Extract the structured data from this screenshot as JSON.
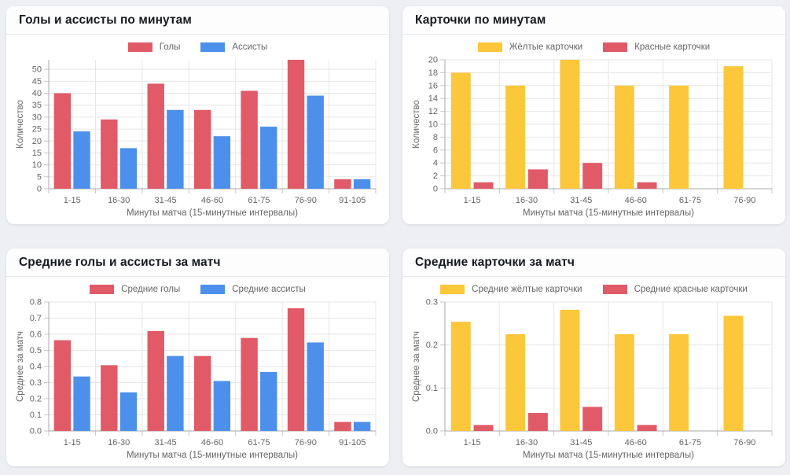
{
  "page": {
    "background_color": "#edeff3",
    "card_color": "#ffffff",
    "grid_color": "#e6e6e6",
    "axis_color": "#a8a8a8",
    "tick_text_color": "#666666"
  },
  "chart_data": [
    {
      "id": "goals-assists-by-minutes",
      "title": "Голы и ассисты по минутам",
      "type": "bar",
      "categories": [
        "1-15",
        "16-30",
        "31-45",
        "46-60",
        "61-75",
        "76-90",
        "91-105"
      ],
      "series": [
        {
          "name": "Голы",
          "color": "#e05a67",
          "values": [
            40,
            29,
            44,
            33,
            41,
            54,
            4
          ]
        },
        {
          "name": "Ассисты",
          "color": "#4d90eb",
          "values": [
            24,
            17,
            33,
            22,
            26,
            39,
            4
          ]
        }
      ],
      "xlabel": "Минуты матча (15-минутные интервалы)",
      "ylabel": "Количество",
      "ylim": [
        0,
        54
      ],
      "yticks": [
        0,
        5,
        10,
        15,
        20,
        25,
        30,
        35,
        40,
        45,
        50
      ],
      "tick_decimals": 0,
      "grid": true,
      "legend_position": "top"
    },
    {
      "id": "cards-by-minutes",
      "title": "Карточки по минутам",
      "type": "bar",
      "categories": [
        "1-15",
        "16-30",
        "31-45",
        "46-60",
        "61-75",
        "76-90"
      ],
      "series": [
        {
          "name": "Жёлтые карточки",
          "color": "#fcc73a",
          "values": [
            18,
            16,
            20,
            16,
            16,
            19
          ]
        },
        {
          "name": "Красные карточки",
          "color": "#e05a67",
          "values": [
            1,
            3,
            4,
            1,
            0,
            0
          ]
        }
      ],
      "xlabel": "Минуты матча (15-минутные интервалы)",
      "ylabel": "Количество",
      "ylim": [
        0,
        20
      ],
      "yticks": [
        0,
        2,
        4,
        6,
        8,
        10,
        12,
        14,
        16,
        18,
        20
      ],
      "tick_decimals": 0,
      "grid": true,
      "legend_position": "top"
    },
    {
      "id": "avg-goals-assists-per-match",
      "title": "Средние голы и ассисты за матч",
      "type": "bar",
      "categories": [
        "1-15",
        "16-30",
        "31-45",
        "46-60",
        "61-75",
        "76-90",
        "91-105"
      ],
      "series": [
        {
          "name": "Средние голы",
          "color": "#e05a67",
          "values": [
            0.563,
            0.408,
            0.62,
            0.465,
            0.577,
            0.761,
            0.056
          ]
        },
        {
          "name": "Средние ассисты",
          "color": "#4d90eb",
          "values": [
            0.338,
            0.239,
            0.465,
            0.31,
            0.366,
            0.549,
            0.056
          ]
        }
      ],
      "xlabel": "Минуты матча (15-минутные интервалы)",
      "ylabel": "Среднее за матч",
      "ylim": [
        0,
        0.8
      ],
      "yticks": [
        0,
        0.1,
        0.2,
        0.3,
        0.4,
        0.5,
        0.6,
        0.7,
        0.8
      ],
      "tick_decimals": 1,
      "grid": true,
      "legend_position": "top"
    },
    {
      "id": "avg-cards-per-match",
      "title": "Средние карточки за матч",
      "type": "bar",
      "categories": [
        "1-15",
        "16-30",
        "31-45",
        "46-60",
        "61-75",
        "76-90"
      ],
      "series": [
        {
          "name": "Средние жёлтые карточки",
          "color": "#fcc73a",
          "values": [
            0.254,
            0.225,
            0.282,
            0.225,
            0.225,
            0.268
          ]
        },
        {
          "name": "Средние красные карточки",
          "color": "#e05a67",
          "values": [
            0.014,
            0.042,
            0.056,
            0.014,
            0,
            0
          ]
        }
      ],
      "xlabel": "Минуты матча (15-минутные интервалы)",
      "ylabel": "Среднее за матч",
      "ylim": [
        0,
        0.3
      ],
      "yticks": [
        0,
        0.1,
        0.2,
        0.3
      ],
      "tick_decimals": 1,
      "grid": true,
      "legend_position": "top"
    }
  ]
}
